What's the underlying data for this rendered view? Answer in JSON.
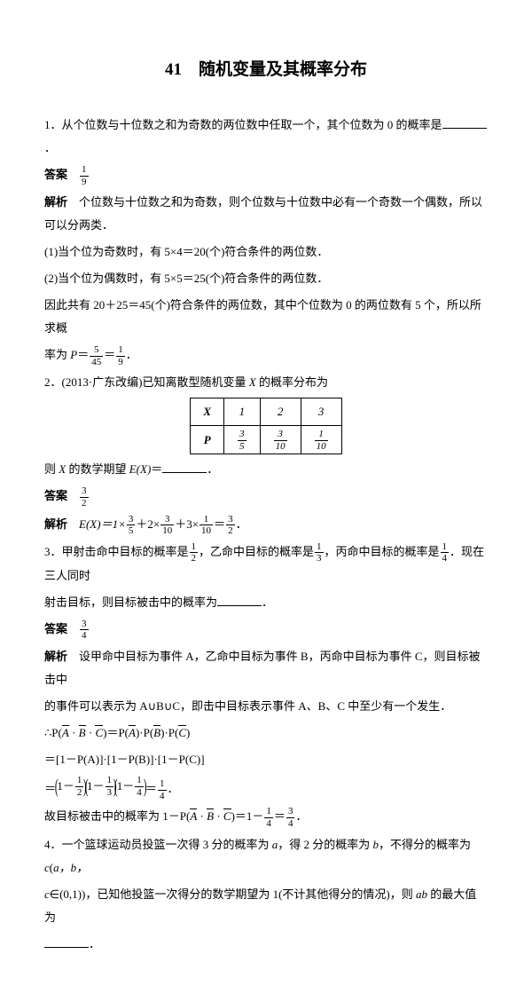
{
  "title": "41　随机变量及其概率分布",
  "q1": {
    "text": "1．从个位数与十位数之和为奇数的两位数中任取一个，其个位数为 0 的概率是",
    "ansLabel": "答案",
    "ansNum": "1",
    "ansDen": "9",
    "expLabel": "解析",
    "exp1": "个位数与十位数之和为奇数，则个位数与十位数中必有一个奇数一个偶数，所以可以分两类．",
    "exp2": "(1)当个位为奇数时，有 5×4＝20(个)符合条件的两位数．",
    "exp3": "(2)当个位为偶数时，有 5×5＝25(个)符合条件的两位数．",
    "exp4a": "因此共有 20＋25＝45(个)符合条件的两位数，其中个位数为 0 的两位数有 5 个，所以所求概",
    "exp4b": "率为 ",
    "P": "P",
    "eq": "＝",
    "f1n": "5",
    "f1d": "45",
    "f2n": "1",
    "f2d": "9",
    "dot": "．"
  },
  "q2": {
    "text": "2．(2013·广东改编)已知离散型随机变量 ",
    "X": "X",
    "text2": " 的概率分布为",
    "table": {
      "h": "X",
      "c1": "1",
      "c2": "2",
      "c3": "3",
      "p": "P",
      "p1n": "3",
      "p1d": "5",
      "p2n": "3",
      "p2d": "10",
      "p3n": "1",
      "p3d": "10"
    },
    "then": "则 ",
    "EX": "E(X)",
    "eq": "＝",
    "blankEnd": "．",
    "ansLabel": "答案",
    "ansNum": "3",
    "ansDen": "2",
    "expLabel": "解析",
    "calc_pre": "E(X)＝1×",
    "t1n": "3",
    "t1d": "5",
    "plus": "＋2×",
    "t2n": "3",
    "t2d": "10",
    "plus2": "＋3×",
    "t3n": "1",
    "t3d": "10",
    "eq2": "＝",
    "rn": "3",
    "rd": "2",
    "dot": "．"
  },
  "q3": {
    "text1": "3．甲射击命中目标的概率是",
    "f1n": "1",
    "f1d": "2",
    "text2": "，乙命中目标的概率是",
    "f2n": "1",
    "f2d": "3",
    "text3": "，丙命中目标的概率是",
    "f3n": "1",
    "f3d": "4",
    "text4": "．现在三人同时",
    "text5": "射击目标，则目标被击中的概率为",
    "ansLabel": "答案",
    "ansNum": "3",
    "ansDen": "4",
    "expLabel": "解析",
    "exp1": "设甲命中目标为事件 A，乙命中目标为事件 B，丙命中目标为事件 C，则目标被击中",
    "exp2": "的事件可以表示为 A∪B∪C，即击中目标表示事件 A、B、C 中至少有一个发生．",
    "line1a": "∴P(",
    "A": "A",
    "sp": " · ",
    "B": "B",
    "C": "C",
    "line1b": ")＝P(",
    "line1c": ")·P(",
    "line1d": ")·P(",
    "line1e": ")",
    "line2a": "＝[1－P(A)]·[1－P(B)]·[1－P(C)]",
    "line3eq": "＝",
    "one": "1",
    "minus": "－",
    "h1n": "1",
    "h1d": "2",
    "h2n": "1",
    "h2d": "3",
    "h3n": "1",
    "h3d": "4",
    "res_n": "1",
    "res_d": "4",
    "dot": "．",
    "concl_a": "故目标被击中的概率为 1－P(",
    "concl_b": ")＝1－",
    "cn": "1",
    "cd": "4",
    "eq": "＝",
    "rn": "3",
    "rd": "4"
  },
  "q4": {
    "t1": "4．一个篮球运动员投篮一次得 3 分的概率为 ",
    "a": "a",
    "t2": "，得 2 分的概率为 ",
    "b": "b",
    "t3": "，不得分的概率为 ",
    "c": "c",
    "t4": "(",
    "abc": "a，b，",
    "t5": "c",
    "in": "∈(0,1))，已知他投篮一次得分的数学期望为 1(不计其他得分的情况)，则 ",
    "ab": "ab",
    "t6": " 的最大值为",
    "blankEnd": "．"
  }
}
